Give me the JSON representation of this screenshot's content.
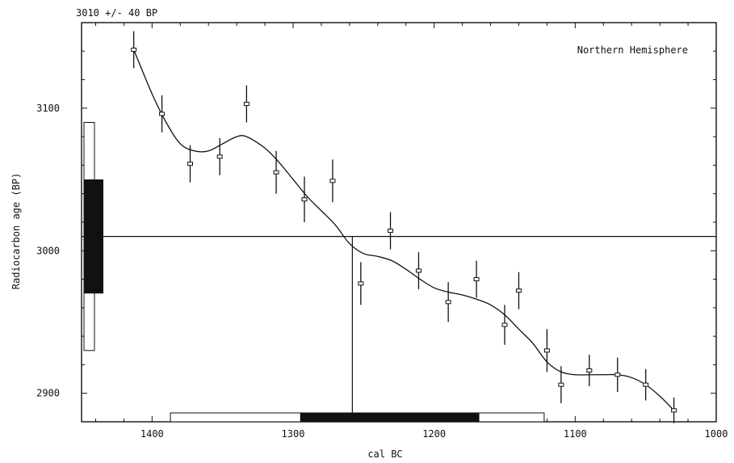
{
  "chart_data": {
    "type": "scatter",
    "title": "3010 +/- 40 BP",
    "annotation": "Northern Hemisphere",
    "xlabel": "cal BC",
    "ylabel": "Radiocarbon age (BP)",
    "xlim": [
      1450,
      1000
    ],
    "ylim": [
      2880,
      3160
    ],
    "x_ticks": [
      1400,
      1300,
      1200,
      1100,
      1000
    ],
    "y_ticks": [
      2900,
      3000,
      3100
    ],
    "grid": false,
    "measured_age": 3010,
    "measured_error": 40,
    "measurements": [
      {
        "x": 1413,
        "y": 3141,
        "err": 13
      },
      {
        "x": 1393,
        "y": 3096,
        "err": 13
      },
      {
        "x": 1373,
        "y": 3061,
        "err": 13
      },
      {
        "x": 1352,
        "y": 3066,
        "err": 13
      },
      {
        "x": 1333,
        "y": 3103,
        "err": 13
      },
      {
        "x": 1312,
        "y": 3055,
        "err": 15
      },
      {
        "x": 1292,
        "y": 3036,
        "err": 16
      },
      {
        "x": 1272,
        "y": 3049,
        "err": 15
      },
      {
        "x": 1252,
        "y": 2977,
        "err": 15
      },
      {
        "x": 1231,
        "y": 3014,
        "err": 13
      },
      {
        "x": 1211,
        "y": 2986,
        "err": 13
      },
      {
        "x": 1190,
        "y": 2964,
        "err": 14
      },
      {
        "x": 1170,
        "y": 2980,
        "err": 13
      },
      {
        "x": 1150,
        "y": 2948,
        "err": 14
      },
      {
        "x": 1140,
        "y": 2972,
        "err": 13
      },
      {
        "x": 1120,
        "y": 2930,
        "err": 15
      },
      {
        "x": 1110,
        "y": 2906,
        "err": 13
      },
      {
        "x": 1090,
        "y": 2916,
        "err": 11
      },
      {
        "x": 1070,
        "y": 2913,
        "err": 12
      },
      {
        "x": 1050,
        "y": 2906,
        "err": 11
      },
      {
        "x": 1030,
        "y": 2888,
        "err": 9
      }
    ],
    "calibration_curve": {
      "x": [
        1413,
        1400,
        1390,
        1380,
        1370,
        1360,
        1350,
        1340,
        1333,
        1320,
        1310,
        1300,
        1290,
        1280,
        1270,
        1260,
        1250,
        1240,
        1230,
        1220,
        1210,
        1200,
        1190,
        1180,
        1170,
        1160,
        1150,
        1140,
        1130,
        1120,
        1110,
        1100,
        1090,
        1080,
        1070,
        1060,
        1050,
        1040,
        1030
      ],
      "y": [
        3141,
        3110,
        3090,
        3075,
        3070,
        3070,
        3075,
        3080,
        3080,
        3072,
        3062,
        3050,
        3038,
        3028,
        3018,
        3005,
        2998,
        2996,
        2993,
        2987,
        2980,
        2974,
        2971,
        2969,
        2966,
        2962,
        2955,
        2945,
        2935,
        2922,
        2915,
        2913,
        2913,
        2913,
        2913,
        2911,
        2906,
        2898,
        2888
      ]
    },
    "age_ranges": {
      "sigma1": [
        2970,
        3050
      ],
      "sigma2": [
        2930,
        3090
      ]
    },
    "calendar_ranges": {
      "sigma1": [
        1295,
        1168
      ],
      "sigma2": [
        1387,
        1122
      ]
    },
    "intercept_x": 1258
  }
}
